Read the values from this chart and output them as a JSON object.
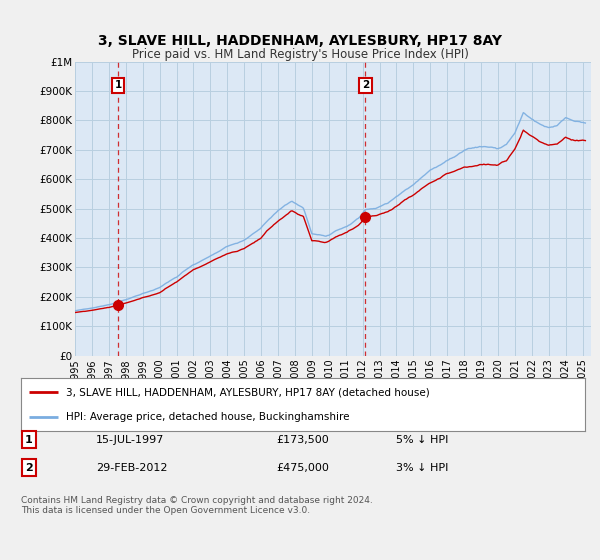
{
  "title": "3, SLAVE HILL, HADDENHAM, AYLESBURY, HP17 8AY",
  "subtitle": "Price paid vs. HM Land Registry's House Price Index (HPI)",
  "ylim": [
    0,
    1000000
  ],
  "yticks": [
    0,
    100000,
    200000,
    300000,
    400000,
    500000,
    600000,
    700000,
    800000,
    900000,
    1000000
  ],
  "ytick_labels": [
    "£0",
    "£100K",
    "£200K",
    "£300K",
    "£400K",
    "£500K",
    "£600K",
    "£700K",
    "£800K",
    "£900K",
    "£1M"
  ],
  "xlim_start": 1995.0,
  "xlim_end": 2025.5,
  "background_color": "#f0f0f0",
  "plot_bg_color": "#dce8f5",
  "grid_color": "#b8cfe0",
  "red_line_color": "#cc0000",
  "blue_line_color": "#7aade0",
  "marker1_date": 1997.54,
  "marker1_value": 173500,
  "marker1_label": "1",
  "marker2_date": 2012.17,
  "marker2_value": 475000,
  "marker2_label": "2",
  "legend_line1": "3, SLAVE HILL, HADDENHAM, AYLESBURY, HP17 8AY (detached house)",
  "legend_line2": "HPI: Average price, detached house, Buckinghamshire",
  "ann1_date": "15-JUL-1997",
  "ann1_price": "£173,500",
  "ann1_hpi": "5% ↓ HPI",
  "ann2_date": "29-FEB-2012",
  "ann2_price": "£475,000",
  "ann2_hpi": "3% ↓ HPI",
  "footer": "Contains HM Land Registry data © Crown copyright and database right 2024.\nThis data is licensed under the Open Government Licence v3.0."
}
